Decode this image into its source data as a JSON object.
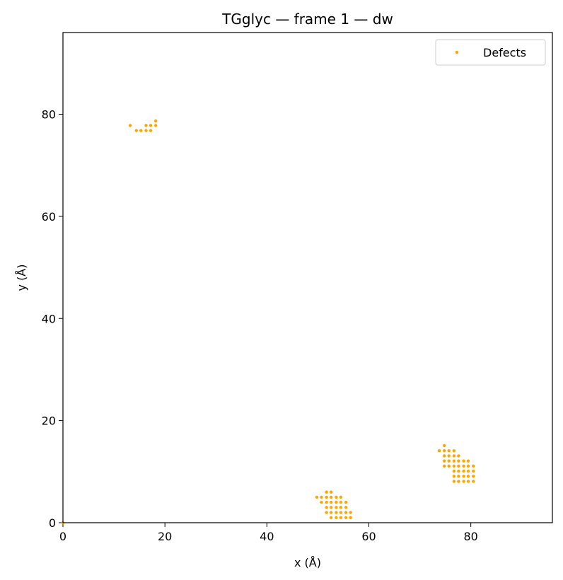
{
  "chart_data": {
    "type": "scatter",
    "title": "TGglyc — frame 1 — dw",
    "xlabel": "x (Å)",
    "ylabel": "y (Å)",
    "xlim": [
      0,
      96
    ],
    "ylim": [
      0,
      96
    ],
    "xticks": [
      0,
      20,
      40,
      60,
      80
    ],
    "yticks": [
      0,
      20,
      40,
      60,
      80
    ],
    "grid": false,
    "legend_position": "top-right",
    "color": "#FFA500",
    "series": [
      {
        "name": "Defects",
        "points": [
          [
            13.2,
            77.8
          ],
          [
            14.4,
            76.8
          ],
          [
            15.3,
            76.8
          ],
          [
            16.3,
            77.8
          ],
          [
            16.3,
            76.8
          ],
          [
            17.2,
            77.8
          ],
          [
            17.2,
            76.8
          ],
          [
            18.2,
            77.8
          ],
          [
            18.2,
            78.7
          ],
          [
            49.8,
            5.0
          ],
          [
            50.7,
            5.0
          ],
          [
            50.7,
            4.0
          ],
          [
            51.7,
            6.0
          ],
          [
            51.7,
            5.0
          ],
          [
            51.7,
            4.0
          ],
          [
            51.7,
            3.0
          ],
          [
            51.7,
            2.0
          ],
          [
            52.6,
            6.0
          ],
          [
            52.6,
            5.0
          ],
          [
            52.6,
            4.0
          ],
          [
            52.6,
            3.0
          ],
          [
            52.6,
            2.0
          ],
          [
            52.6,
            1.0
          ],
          [
            53.6,
            5.0
          ],
          [
            53.6,
            4.0
          ],
          [
            53.6,
            3.0
          ],
          [
            53.6,
            2.0
          ],
          [
            53.6,
            1.0
          ],
          [
            54.5,
            5.0
          ],
          [
            54.5,
            4.0
          ],
          [
            54.5,
            3.0
          ],
          [
            54.5,
            2.0
          ],
          [
            54.5,
            1.0
          ],
          [
            55.5,
            4.0
          ],
          [
            55.5,
            3.0
          ],
          [
            55.5,
            2.0
          ],
          [
            55.5,
            1.0
          ],
          [
            56.4,
            2.0
          ],
          [
            56.4,
            1.0
          ],
          [
            73.8,
            14.1
          ],
          [
            74.8,
            15.1
          ],
          [
            74.8,
            14.1
          ],
          [
            74.8,
            13.1
          ],
          [
            74.8,
            12.1
          ],
          [
            74.8,
            11.1
          ],
          [
            75.7,
            14.1
          ],
          [
            75.7,
            13.1
          ],
          [
            75.7,
            12.1
          ],
          [
            75.7,
            11.1
          ],
          [
            76.7,
            14.1
          ],
          [
            76.7,
            13.1
          ],
          [
            76.7,
            12.1
          ],
          [
            76.7,
            11.1
          ],
          [
            76.7,
            10.1
          ],
          [
            76.7,
            9.1
          ],
          [
            76.7,
            8.1
          ],
          [
            77.6,
            13.1
          ],
          [
            77.6,
            12.1
          ],
          [
            77.6,
            11.1
          ],
          [
            77.6,
            10.1
          ],
          [
            77.6,
            9.1
          ],
          [
            77.6,
            8.1
          ],
          [
            78.6,
            12.1
          ],
          [
            78.6,
            11.1
          ],
          [
            78.6,
            10.1
          ],
          [
            78.6,
            9.1
          ],
          [
            78.6,
            8.1
          ],
          [
            79.5,
            12.1
          ],
          [
            79.5,
            11.1
          ],
          [
            79.5,
            10.1
          ],
          [
            79.5,
            9.1
          ],
          [
            79.5,
            8.1
          ],
          [
            80.5,
            11.1
          ],
          [
            80.5,
            10.1
          ],
          [
            80.5,
            9.1
          ],
          [
            80.5,
            8.1
          ],
          [
            0.0,
            0.0
          ]
        ]
      }
    ]
  }
}
